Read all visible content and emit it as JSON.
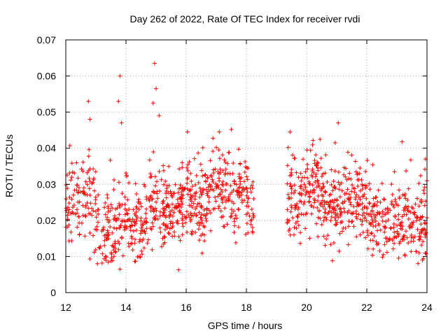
{
  "colors": {
    "series": "#ff0000",
    "grid": "#a0a0a0",
    "frame": "#000000"
  },
  "chart_data": {
    "type": "scatter",
    "title": "Day 262 of 2022, Rate Of TEC Index for receiver rvdi",
    "xlabel": "GPS time / hours",
    "ylabel": "ROTI / TECUs",
    "xlim": [
      12,
      24
    ],
    "ylim": [
      0,
      0.07
    ],
    "xticks": [
      12,
      14,
      16,
      18,
      20,
      22,
      24
    ],
    "xtick_labels": [
      "12",
      "14",
      "16",
      "18",
      "20",
      "22",
      "24"
    ],
    "yticks": [
      0,
      0.01,
      0.02,
      0.03,
      0.04,
      0.05,
      0.06,
      0.07
    ],
    "ytick_labels": [
      "0",
      "0.01",
      "0.02",
      "0.03",
      "0.04",
      "0.05",
      "0.06",
      "0.07"
    ],
    "grid": true,
    "marker": "+",
    "series": [
      {
        "name": "ROTI",
        "gap_hours": [
          18.25,
          19.35
        ],
        "notable_points": [
          [
            12.75,
            0.053
          ],
          [
            12.8,
            0.048
          ],
          [
            13.8,
            0.06
          ],
          [
            13.75,
            0.053
          ],
          [
            13.85,
            0.047
          ],
          [
            14.95,
            0.0635
          ],
          [
            15.0,
            0.0565
          ],
          [
            14.9,
            0.0525
          ],
          [
            15.1,
            0.049
          ],
          [
            15.75,
            0.0063
          ],
          [
            13.05,
            0.008
          ],
          [
            13.8,
            0.0065
          ],
          [
            17.1,
            0.0445
          ],
          [
            17.5,
            0.0452
          ],
          [
            19.45,
            0.0445
          ],
          [
            21.05,
            0.047
          ],
          [
            20.95,
            0.0415
          ],
          [
            23.85,
            0.009
          ],
          [
            22.55,
            0.0105
          ],
          [
            23.95,
            0.037
          ]
        ],
        "trend": [
          [
            12.0,
            0.022
          ],
          [
            12.25,
            0.027
          ],
          [
            12.5,
            0.026
          ],
          [
            12.75,
            0.028
          ],
          [
            13.0,
            0.021
          ],
          [
            13.25,
            0.015
          ],
          [
            13.5,
            0.016
          ],
          [
            13.75,
            0.019
          ],
          [
            14.0,
            0.021
          ],
          [
            14.25,
            0.017
          ],
          [
            14.5,
            0.018
          ],
          [
            14.75,
            0.022
          ],
          [
            15.0,
            0.024
          ],
          [
            15.25,
            0.021
          ],
          [
            15.5,
            0.022
          ],
          [
            15.75,
            0.024
          ],
          [
            16.0,
            0.028
          ],
          [
            16.25,
            0.024
          ],
          [
            16.5,
            0.022
          ],
          [
            16.75,
            0.027
          ],
          [
            17.0,
            0.03
          ],
          [
            17.25,
            0.028
          ],
          [
            17.5,
            0.027
          ],
          [
            17.75,
            0.029
          ],
          [
            18.0,
            0.027
          ],
          [
            18.25,
            0.022
          ],
          [
            19.35,
            0.025
          ],
          [
            19.5,
            0.027
          ],
          [
            19.75,
            0.025
          ],
          [
            20.0,
            0.029
          ],
          [
            20.25,
            0.03
          ],
          [
            20.5,
            0.027
          ],
          [
            20.75,
            0.022
          ],
          [
            21.0,
            0.024
          ],
          [
            21.25,
            0.025
          ],
          [
            21.5,
            0.024
          ],
          [
            21.75,
            0.025
          ],
          [
            22.0,
            0.024
          ],
          [
            22.25,
            0.02
          ],
          [
            22.5,
            0.019
          ],
          [
            22.75,
            0.019
          ],
          [
            23.0,
            0.019
          ],
          [
            23.25,
            0.019
          ],
          [
            23.5,
            0.02
          ],
          [
            23.75,
            0.018
          ],
          [
            24.0,
            0.021
          ]
        ]
      }
    ]
  }
}
